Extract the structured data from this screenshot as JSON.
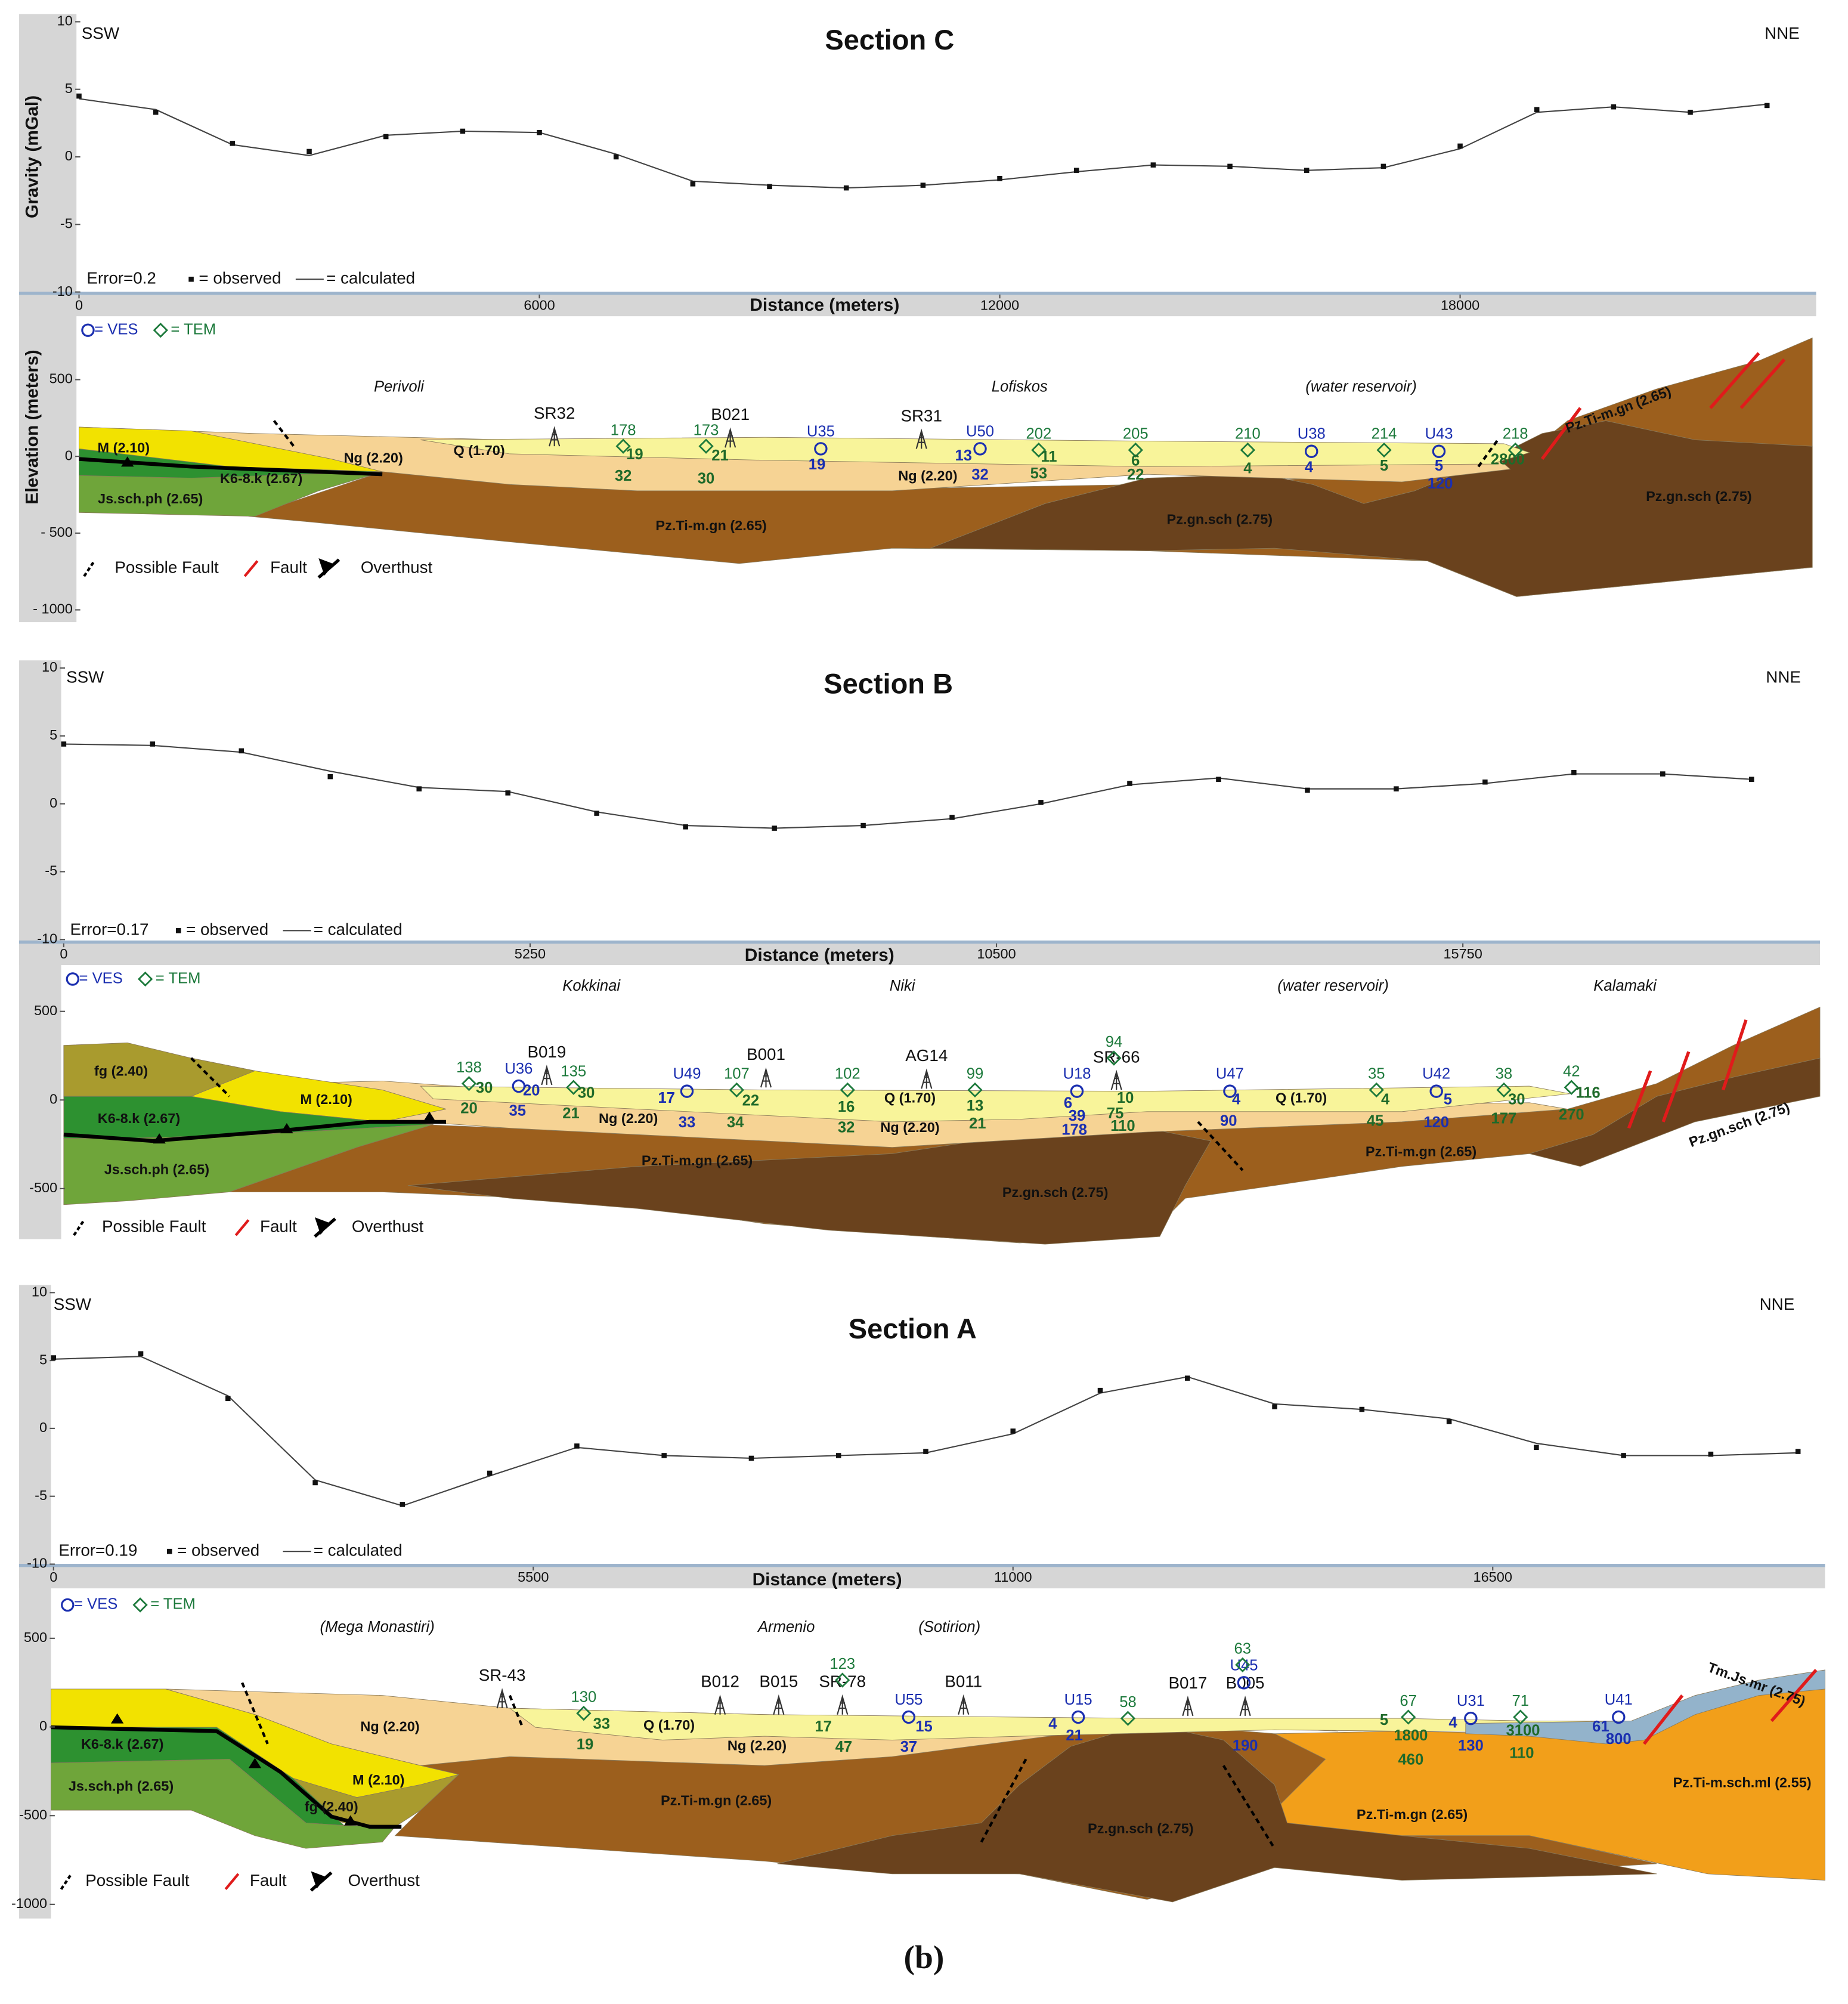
{
  "chart_data": [
    {
      "type": "line",
      "title": "Section C",
      "left_direction": "SSW",
      "right_direction": "NNE",
      "y_label": "Gravity (mGal)",
      "x_label": "Distance (meters)",
      "elevation_label": "Elevation (meters)",
      "error": "Error=0.2",
      "x": [
        0,
        1000,
        2000,
        3000,
        4000,
        5000,
        6000,
        7000,
        8000,
        9000,
        10000,
        11000,
        12000,
        13000,
        14000,
        15000,
        16000,
        17000,
        18000,
        19000,
        20000,
        21000,
        22000
      ],
      "series": [
        {
          "name": "= observed",
          "color": "#111111",
          "values": [
            4.5,
            3.3,
            1.0,
            0.4,
            1.5,
            1.9,
            1.8,
            0.0,
            -2.0,
            -2.2,
            -2.3,
            -2.1,
            -1.6,
            -1.0,
            -0.6,
            -0.7,
            -1.0,
            -0.7,
            0.8,
            3.5,
            3.7,
            3.3,
            3.8
          ]
        },
        {
          "name": "= calculated",
          "color": "#444444",
          "values": [
            4.3,
            3.5,
            0.9,
            0.1,
            1.6,
            1.9,
            1.8,
            0.2,
            -1.8,
            -2.1,
            -2.3,
            -2.1,
            -1.7,
            -1.1,
            -0.6,
            -0.7,
            -1.0,
            -0.8,
            0.6,
            3.3,
            3.7,
            3.3,
            3.9
          ]
        }
      ],
      "xlim": [
        0,
        22640
      ],
      "xticks": [
        0,
        6000,
        12000,
        18000
      ],
      "ylim": [
        -10,
        10
      ],
      "yticks": [
        10,
        5,
        0,
        -5,
        -10
      ],
      "elevation_lim": [
        -1080,
        880
      ],
      "elevation_ticks": [
        500,
        0,
        {
          "value": -500,
          "label": "- 500"
        },
        {
          "value": -1000,
          "label": "- 1000"
        }
      ],
      "ves_legend": "= VES",
      "tem_legend": "= TEM",
      "legend": [
        "Possible Fault",
        "Fault",
        "Overthust"
      ],
      "places": [
        "Perivoli",
        "Lofiskos",
        "(water reservoir)"
      ],
      "formations": [
        "M (2.10)",
        "Ng (2.20)",
        "Q (1.70)",
        "K6-8.k (2.67)",
        "Js.sch.ph (2.65)",
        "Ng (2.20)",
        "Pz.Ti-m.gn (2.65)",
        "Pz.gn.sch (2.75)",
        "Pz.Ti-m.gn (2.65)",
        "Pz.gn.sch (2.75)"
      ],
      "wells": [
        "SR32",
        "B021",
        "SR31"
      ],
      "ves": [
        "U35",
        "U50",
        "U38",
        "U43"
      ],
      "tem": [
        "178",
        "173",
        "202",
        "205",
        "210",
        "214",
        "218"
      ],
      "tem_values": [
        "19",
        "32",
        "21",
        "30",
        "11",
        "53",
        "6",
        "22",
        "4",
        "5",
        "2800"
      ],
      "ves_values": [
        "19",
        "13",
        "32",
        "4",
        "5",
        "120"
      ]
    },
    {
      "type": "line",
      "title": "Section B",
      "left_direction": "SSW",
      "right_direction": "NNE",
      "x_label": "Distance (meters)",
      "error": "Error=0.17",
      "x": [
        0,
        1000,
        2000,
        3000,
        4000,
        5000,
        6000,
        7000,
        8000,
        9000,
        10000,
        11000,
        12000,
        13000,
        14000,
        15000,
        16000,
        17000,
        18000,
        19000
      ],
      "series": [
        {
          "name": "= observed",
          "color": "#111111",
          "values": [
            4.4,
            4.4,
            3.9,
            2.0,
            1.1,
            0.8,
            -0.7,
            -1.7,
            -1.8,
            -1.6,
            -1.0,
            0.1,
            1.5,
            1.8,
            1.0,
            1.1,
            1.6,
            2.3,
            2.2,
            1.8
          ]
        },
        {
          "name": "= calculated",
          "color": "#444444",
          "values": [
            4.4,
            4.3,
            3.8,
            2.4,
            1.2,
            0.9,
            -0.6,
            -1.6,
            -1.8,
            -1.6,
            -1.1,
            0.0,
            1.4,
            1.9,
            1.1,
            1.1,
            1.5,
            2.2,
            2.2,
            1.8
          ]
        }
      ],
      "xlim": [
        0,
        19770
      ],
      "xticks": [
        0,
        5250,
        10500,
        15750
      ],
      "ylim": [
        -10,
        10
      ],
      "yticks": [
        10,
        5,
        0,
        -5,
        -10
      ],
      "elevation_lim": [
        -785,
        740
      ],
      "elevation_ticks": [
        500,
        0,
        -500
      ],
      "ves_legend": "= VES",
      "tem_legend": "= TEM",
      "legend": [
        "Possible Fault",
        "Fault",
        "Overthust"
      ],
      "places": [
        "Kokkinai",
        "Niki",
        "(water reservoir)",
        "Kalamaki"
      ],
      "formations": [
        "fg (2.40)",
        "M (2.10)",
        "Q (1.70)",
        "Q (1.70)",
        "K6-8.k (2.67)",
        "Ng (2.20)",
        "Ng (2.20)",
        "Js.sch.ph (2.65)",
        "Pz.Ti-m.gn (2.65)",
        "Pz.gn.sch (2.75)",
        "Pz.Ti-m.gn (2.65)",
        "Pz.gn.sch (2.75)"
      ],
      "wells": [
        "B019",
        "B001",
        "AG14",
        "SR-66"
      ],
      "ves": [
        "U36",
        "U49",
        "U18",
        "U47",
        "U42"
      ],
      "tem": [
        "138",
        "135",
        "107",
        "102",
        "99",
        "94",
        "35",
        "38",
        "42"
      ],
      "tem_values": [
        "30",
        "20",
        "30",
        "21",
        "22",
        "34",
        "16",
        "32",
        "13",
        "21",
        "10",
        "75",
        "110",
        "4",
        "45",
        "30",
        "177",
        "116",
        "270"
      ],
      "ves_values": [
        "20",
        "35",
        "17",
        "33",
        "6",
        "39",
        "178",
        "4",
        "90",
        "5",
        "120"
      ]
    },
    {
      "type": "line",
      "title": "Section A",
      "left_direction": "SSW",
      "right_direction": "NNE",
      "x_label": "Distance (meters)",
      "error": "Error=0.19",
      "x": [
        0,
        1000,
        2000,
        3000,
        4000,
        5000,
        6000,
        7000,
        8000,
        9000,
        10000,
        11000,
        12000,
        13000,
        14000,
        15000,
        16000,
        17000,
        18000,
        19000,
        20000
      ],
      "series": [
        {
          "name": "= observed",
          "color": "#111111",
          "values": [
            5.2,
            5.5,
            2.2,
            -4.0,
            -5.6,
            -3.3,
            -1.3,
            -2.0,
            -2.2,
            -2.0,
            -1.7,
            -0.2,
            2.8,
            3.7,
            1.6,
            1.4,
            0.5,
            -1.4,
            -2.0,
            -1.9,
            -1.7
          ]
        },
        {
          "name": "= calculated",
          "color": "#444444",
          "values": [
            5.1,
            5.3,
            2.4,
            -3.8,
            -5.7,
            -3.5,
            -1.4,
            -2.0,
            -2.2,
            -2.0,
            -1.8,
            -0.4,
            2.6,
            3.8,
            1.8,
            1.4,
            0.7,
            -1.1,
            -2.0,
            -2.0,
            -1.8
          ]
        }
      ],
      "xlim": [
        0,
        20310
      ],
      "xticks": [
        0,
        5500,
        11000,
        16500
      ],
      "ylim": [
        -10,
        10
      ],
      "yticks": [
        10,
        5,
        0,
        -5,
        -10
      ],
      "elevation_lim": [
        -1080,
        760
      ],
      "elevation_ticks": [
        500,
        0,
        -500,
        -1000
      ],
      "ves_legend": "= VES",
      "tem_legend": "= TEM",
      "legend": [
        "Possible Fault",
        "Fault",
        "Overthust"
      ],
      "places": [
        "(Mega Monastiri)",
        "Armenio",
        "(Sotirion)"
      ],
      "formations": [
        "Ng (2.20)",
        "Q (1.70)",
        "Ng (2.20)",
        "K6-8.k (2.67)",
        "M (2.10)",
        "Js.sch.ph (2.65)",
        "fg (2.40)",
        "Pz.Ti-m.gn (2.65)",
        "Pz.gn.sch (2.75)",
        "Pz.Ti-m.gn (2.65)",
        "Pz.Ti-m.sch.ml (2.55)",
        "Tm.Js.mr (2.75)"
      ],
      "wells": [
        "SR-43",
        "B012",
        "B015",
        "SR-78",
        "B011",
        "B017",
        "B005"
      ],
      "ves": [
        "U55",
        "U15",
        "U45",
        "U31",
        "U41"
      ],
      "tem": [
        "130",
        "123",
        "58",
        "63",
        "67",
        "71"
      ],
      "tem_values": [
        "33",
        "19",
        "17",
        "47",
        "5",
        "1800",
        "460",
        "3100",
        "110"
      ],
      "ves_values": [
        "15",
        "37",
        "4",
        "21",
        "190",
        "4",
        "130",
        "61",
        "800"
      ]
    }
  ],
  "caption": "(b)"
}
